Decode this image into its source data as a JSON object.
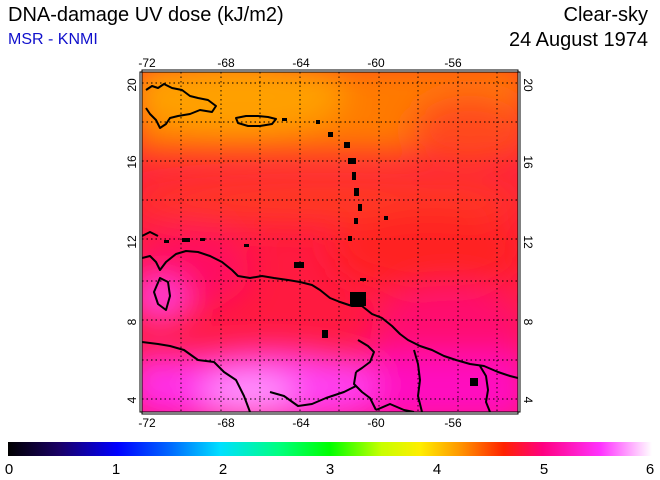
{
  "header": {
    "title": "DNA-damage UV dose (kJ/m2)",
    "source": "MSR - KNMI",
    "condition": "Clear-sky",
    "date": "24 August 1974"
  },
  "map": {
    "lon_ticks": [
      "-72",
      "-68",
      "-64",
      "-60",
      "-56"
    ],
    "lat_ticks": [
      "20",
      "16",
      "12",
      "8",
      "4"
    ]
  },
  "colorbar": {
    "labels": [
      "0",
      "1",
      "2",
      "3",
      "4",
      "5",
      "6"
    ]
  }
}
